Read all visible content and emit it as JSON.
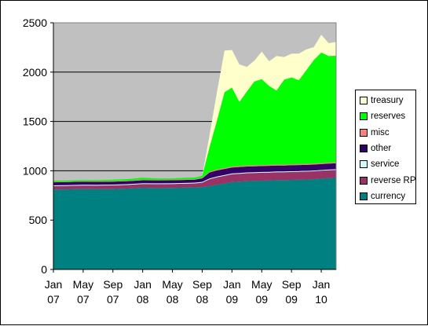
{
  "chart_data": {
    "type": "area",
    "stacked": true,
    "title": "",
    "xlabel": "",
    "ylabel": "",
    "ylim": [
      0,
      2500
    ],
    "yticks": [
      0,
      500,
      1000,
      1500,
      2000,
      2500
    ],
    "xlim": [
      "2007-01",
      "2010-03"
    ],
    "xticks": [
      {
        "date": "2007-01",
        "line1": "Jan",
        "line2": "07"
      },
      {
        "date": "2007-05",
        "line1": "May",
        "line2": "07"
      },
      {
        "date": "2007-09",
        "line1": "Sep",
        "line2": "07"
      },
      {
        "date": "2008-01",
        "line1": "Jan",
        "line2": "08"
      },
      {
        "date": "2008-05",
        "line1": "May",
        "line2": "08"
      },
      {
        "date": "2008-09",
        "line1": "Sep",
        "line2": "08"
      },
      {
        "date": "2009-01",
        "line1": "Jan",
        "line2": "09"
      },
      {
        "date": "2009-05",
        "line1": "May",
        "line2": "09"
      },
      {
        "date": "2009-09",
        "line1": "Sep",
        "line2": "09"
      },
      {
        "date": "2010-01",
        "line1": "Jan",
        "line2": "10"
      }
    ],
    "grid": true,
    "plot_background": "#c0c0c0",
    "legend_position": "right",
    "x": [
      "2007-01",
      "2007-03",
      "2007-05",
      "2007-07",
      "2007-09",
      "2007-11",
      "2008-01",
      "2008-03",
      "2008-05",
      "2008-07",
      "2008-08",
      "2008-09",
      "2008-10",
      "2008-11",
      "2008-12",
      "2009-01",
      "2009-02",
      "2009-03",
      "2009-04",
      "2009-05",
      "2009-06",
      "2009-07",
      "2009-08",
      "2009-09",
      "2009-10",
      "2009-11",
      "2009-12",
      "2010-01",
      "2010-02",
      "2010-03"
    ],
    "series": [
      {
        "name": "currency",
        "color": "#008080",
        "values": [
          810,
          812,
          815,
          814,
          815,
          820,
          828,
          825,
          826,
          830,
          832,
          835,
          845,
          860,
          870,
          885,
          890,
          895,
          897,
          900,
          902,
          905,
          905,
          908,
          910,
          912,
          915,
          920,
          925,
          928
        ]
      },
      {
        "name": "reverse RP",
        "color": "#993366",
        "values": [
          35,
          35,
          36,
          36,
          37,
          37,
          38,
          40,
          40,
          40,
          40,
          45,
          70,
          75,
          80,
          80,
          80,
          80,
          80,
          80,
          80,
          80,
          80,
          80,
          80,
          80,
          80,
          80,
          80,
          80
        ]
      },
      {
        "name": "service",
        "color": "#ccffff",
        "values": [
          8,
          8,
          8,
          8,
          8,
          8,
          8,
          8,
          8,
          8,
          8,
          8,
          8,
          8,
          8,
          8,
          8,
          8,
          8,
          8,
          8,
          8,
          8,
          8,
          8,
          8,
          8,
          8,
          8,
          8
        ]
      },
      {
        "name": "other",
        "color": "#330066",
        "values": [
          30,
          30,
          30,
          30,
          30,
          30,
          30,
          30,
          30,
          30,
          30,
          35,
          60,
          60,
          60,
          60,
          60,
          60,
          60,
          60,
          60,
          60,
          60,
          60,
          60,
          60,
          60,
          60,
          60,
          60
        ]
      },
      {
        "name": "misc",
        "color": "#ff8080",
        "values": [
          5,
          5,
          5,
          5,
          5,
          5,
          5,
          5,
          5,
          5,
          5,
          5,
          10,
          10,
          10,
          10,
          10,
          10,
          10,
          10,
          10,
          10,
          10,
          10,
          10,
          10,
          10,
          10,
          10,
          10
        ]
      },
      {
        "name": "reserves",
        "color": "#00ff00",
        "values": [
          12,
          12,
          12,
          12,
          14,
          16,
          20,
          14,
          14,
          16,
          16,
          20,
          250,
          500,
          770,
          800,
          650,
          750,
          850,
          870,
          800,
          750,
          860,
          880,
          850,
          950,
          1050,
          1120,
          1080,
          1080
        ]
      },
      {
        "name": "treasury",
        "color": "#ffffcc",
        "values": [
          0,
          0,
          0,
          0,
          0,
          0,
          0,
          0,
          0,
          0,
          0,
          0,
          120,
          290,
          420,
          380,
          380,
          250,
          210,
          280,
          250,
          350,
          230,
          240,
          270,
          210,
          130,
          180,
          130,
          140
        ]
      }
    ],
    "legend_order": [
      "treasury",
      "reserves",
      "misc",
      "other",
      "service",
      "reverse RP",
      "currency"
    ]
  }
}
